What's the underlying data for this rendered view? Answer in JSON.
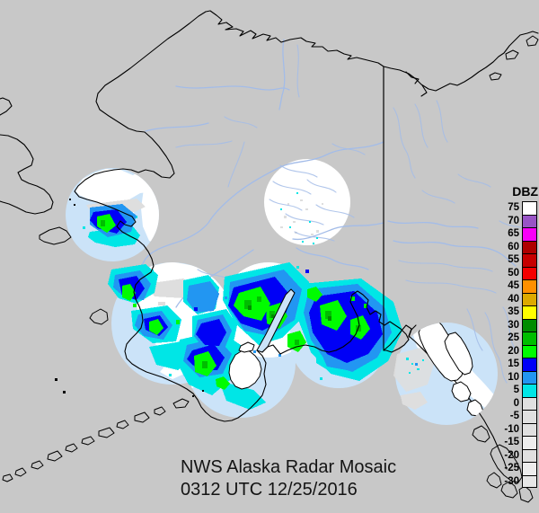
{
  "caption": {
    "title": "NWS Alaska Radar Mosaic",
    "timestamp": "0312 UTC 12/25/2016"
  },
  "legend": {
    "title": "DBZ",
    "entries": [
      {
        "label": "75",
        "color": "#FFFFFF"
      },
      {
        "label": "70",
        "color": "#9854C6"
      },
      {
        "label": "65",
        "color": "#F800F8"
      },
      {
        "label": "60",
        "color": "#AE0000"
      },
      {
        "label": "55",
        "color": "#C60000"
      },
      {
        "label": "50",
        "color": "#F40000"
      },
      {
        "label": "45",
        "color": "#FF9000"
      },
      {
        "label": "40",
        "color": "#DCAA00"
      },
      {
        "label": "35",
        "color": "#FFFF00"
      },
      {
        "label": "30",
        "color": "#008C00"
      },
      {
        "label": "25",
        "color": "#00BE00"
      },
      {
        "label": "20",
        "color": "#00FC00"
      },
      {
        "label": "15",
        "color": "#0000F6"
      },
      {
        "label": "10",
        "color": "#2296F2"
      },
      {
        "label": "5",
        "color": "#00E6E6"
      },
      {
        "label": "0",
        "color": "#E0E0E0"
      },
      {
        "label": "-5",
        "color": "#E0E0E0"
      },
      {
        "label": "-10",
        "color": "#E0E0E0"
      },
      {
        "label": "-15",
        "color": "#EDEDED"
      },
      {
        "label": "-20",
        "color": "#E0E0E0"
      },
      {
        "label": "-25",
        "color": "#EDEDED"
      },
      {
        "label": "-30",
        "color": "#E6E6E6"
      }
    ]
  },
  "map": {
    "colors": {
      "bg": "#C8C8C8",
      "water": "#CBE3F8",
      "land": "#FFFFFF",
      "river": "#A3BCE8",
      "coast": "#000000",
      "e5": "#00E6E6",
      "e10": "#2296F2",
      "e15": "#0000F6",
      "e20": "#00FC00",
      "e25": "#00BE00",
      "e30": "#008C00",
      "egray": "#DEDEDE"
    }
  }
}
